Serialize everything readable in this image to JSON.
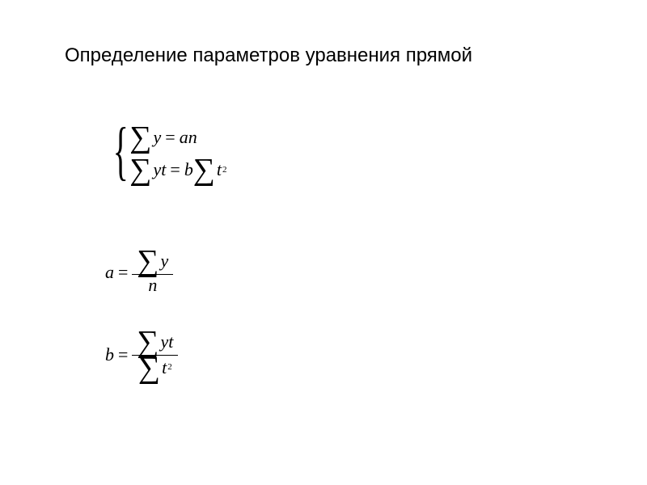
{
  "title": "Определение параметров уравнения прямой",
  "symbols": {
    "sigma": "∑",
    "brace": "{",
    "y": "y",
    "t": "t",
    "a": "a",
    "b": "b",
    "n": "n",
    "eq": "=",
    "two": "2"
  },
  "style": {
    "title_fontsize": 24,
    "math_font": "Times New Roman",
    "sigma_fontsize": 38,
    "term_fontsize": 22,
    "superscript_fontsize": 11,
    "text_color": "#000000",
    "background": "#ffffff"
  }
}
